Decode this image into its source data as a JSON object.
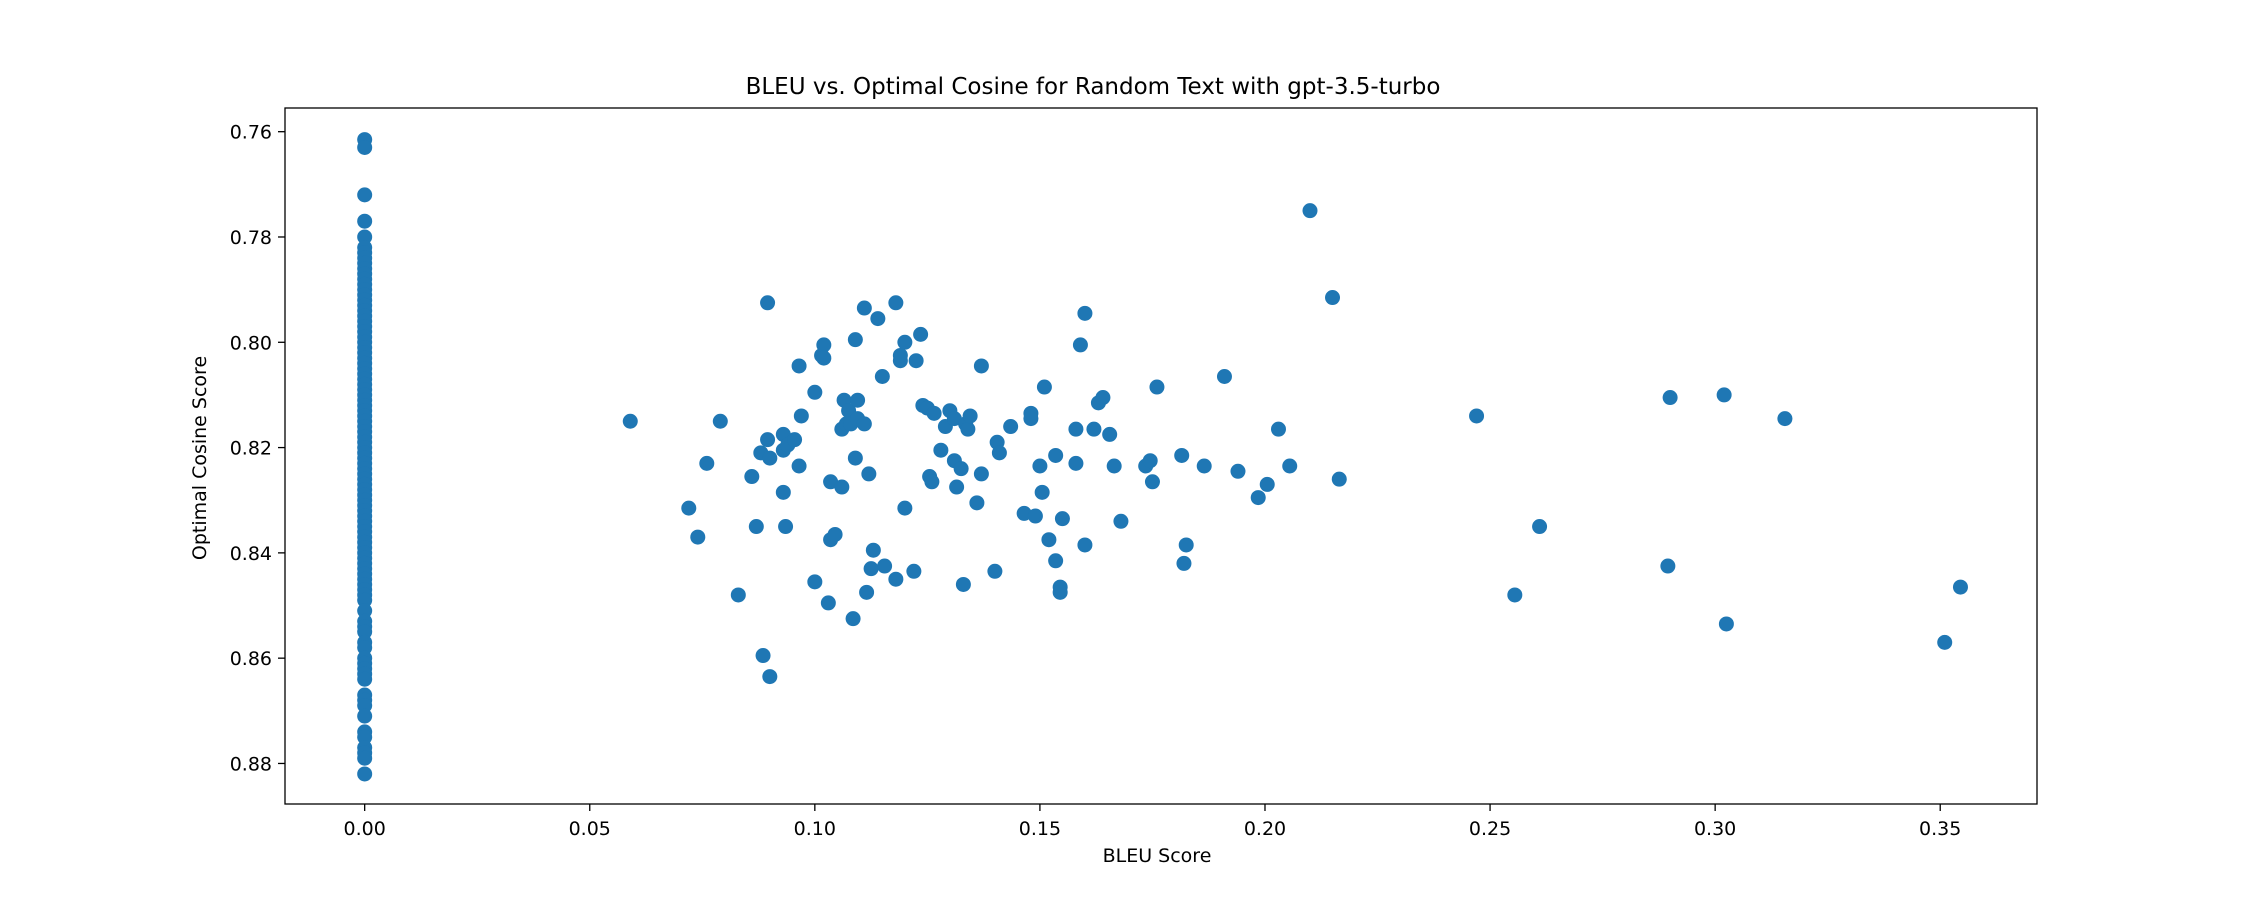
{
  "chart_data": {
    "type": "scatter",
    "title": "BLEU vs. Optimal Cosine for Random Text with gpt-3.5-turbo",
    "xlabel": "BLEU Score",
    "ylabel": "Optimal Cosine Score",
    "xlim": [
      -0.0177,
      0.3715
    ],
    "ylim": [
      0.7555,
      0.8877
    ],
    "y_inverted": true,
    "xticks": [
      0.0,
      0.05,
      0.1,
      0.15,
      0.2,
      0.25,
      0.3,
      0.35
    ],
    "xtick_labels": [
      "0.00",
      "0.05",
      "0.10",
      "0.15",
      "0.20",
      "0.25",
      "0.30",
      "0.35"
    ],
    "yticks": [
      0.76,
      0.78,
      0.8,
      0.82,
      0.84,
      0.86,
      0.88
    ],
    "ytick_labels": [
      "0.76",
      "0.78",
      "0.80",
      "0.82",
      "0.84",
      "0.86",
      "0.88"
    ],
    "grid": false,
    "legend": "none",
    "marker_color": "#1f77b4",
    "series": [
      {
        "points": [
          [
            0.0,
            0.7615
          ],
          [
            0.0,
            0.763
          ],
          [
            0.0,
            0.772
          ],
          [
            0.0,
            0.777
          ],
          [
            0.0,
            0.78
          ],
          [
            0.0,
            0.782
          ],
          [
            0.0,
            0.783
          ],
          [
            0.0,
            0.784
          ],
          [
            0.0,
            0.785
          ],
          [
            0.0,
            0.786
          ],
          [
            0.0,
            0.787
          ],
          [
            0.0,
            0.788
          ],
          [
            0.0,
            0.789
          ],
          [
            0.0,
            0.79
          ],
          [
            0.0,
            0.791
          ],
          [
            0.0,
            0.792
          ],
          [
            0.0,
            0.793
          ],
          [
            0.0,
            0.794
          ],
          [
            0.0,
            0.795
          ],
          [
            0.0,
            0.796
          ],
          [
            0.0,
            0.797
          ],
          [
            0.0,
            0.798
          ],
          [
            0.0,
            0.799
          ],
          [
            0.0,
            0.8
          ],
          [
            0.0,
            0.801
          ],
          [
            0.0,
            0.802
          ],
          [
            0.0,
            0.803
          ],
          [
            0.0,
            0.804
          ],
          [
            0.0,
            0.805
          ],
          [
            0.0,
            0.806
          ],
          [
            0.0,
            0.807
          ],
          [
            0.0,
            0.808
          ],
          [
            0.0,
            0.809
          ],
          [
            0.0,
            0.81
          ],
          [
            0.0,
            0.811
          ],
          [
            0.0,
            0.812
          ],
          [
            0.0,
            0.813
          ],
          [
            0.0,
            0.814
          ],
          [
            0.0,
            0.815
          ],
          [
            0.0,
            0.816
          ],
          [
            0.0,
            0.817
          ],
          [
            0.0,
            0.818
          ],
          [
            0.0,
            0.819
          ],
          [
            0.0,
            0.82
          ],
          [
            0.0,
            0.821
          ],
          [
            0.0,
            0.822
          ],
          [
            0.0,
            0.823
          ],
          [
            0.0,
            0.824
          ],
          [
            0.0,
            0.825
          ],
          [
            0.0,
            0.826
          ],
          [
            0.0,
            0.827
          ],
          [
            0.0,
            0.828
          ],
          [
            0.0,
            0.829
          ],
          [
            0.0,
            0.83
          ],
          [
            0.0,
            0.831
          ],
          [
            0.0,
            0.832
          ],
          [
            0.0,
            0.833
          ],
          [
            0.0,
            0.834
          ],
          [
            0.0,
            0.835
          ],
          [
            0.0,
            0.836
          ],
          [
            0.0,
            0.837
          ],
          [
            0.0,
            0.838
          ],
          [
            0.0,
            0.839
          ],
          [
            0.0,
            0.84
          ],
          [
            0.0,
            0.841
          ],
          [
            0.0,
            0.842
          ],
          [
            0.0,
            0.843
          ],
          [
            0.0,
            0.844
          ],
          [
            0.0,
            0.845
          ],
          [
            0.0,
            0.846
          ],
          [
            0.0,
            0.847
          ],
          [
            0.0,
            0.848
          ],
          [
            0.0,
            0.849
          ],
          [
            0.0,
            0.851
          ],
          [
            0.0,
            0.853
          ],
          [
            0.0,
            0.854
          ],
          [
            0.0,
            0.855
          ],
          [
            0.0,
            0.857
          ],
          [
            0.0,
            0.858
          ],
          [
            0.0,
            0.86
          ],
          [
            0.0,
            0.861
          ],
          [
            0.0,
            0.862
          ],
          [
            0.0,
            0.863
          ],
          [
            0.0,
            0.864
          ],
          [
            0.0,
            0.867
          ],
          [
            0.0,
            0.868
          ],
          [
            0.0,
            0.869
          ],
          [
            0.0,
            0.871
          ],
          [
            0.0,
            0.874
          ],
          [
            0.0,
            0.875
          ],
          [
            0.0,
            0.877
          ],
          [
            0.0,
            0.878
          ],
          [
            0.0,
            0.879
          ],
          [
            0.0,
            0.882
          ],
          [
            0.059,
            0.815
          ],
          [
            0.072,
            0.8315
          ],
          [
            0.074,
            0.837
          ],
          [
            0.076,
            0.823
          ],
          [
            0.079,
            0.815
          ],
          [
            0.083,
            0.848
          ],
          [
            0.086,
            0.8255
          ],
          [
            0.087,
            0.835
          ],
          [
            0.088,
            0.821
          ],
          [
            0.0885,
            0.8595
          ],
          [
            0.0895,
            0.7925
          ],
          [
            0.0895,
            0.8185
          ],
          [
            0.09,
            0.822
          ],
          [
            0.09,
            0.8635
          ],
          [
            0.093,
            0.8175
          ],
          [
            0.093,
            0.8205
          ],
          [
            0.093,
            0.8285
          ],
          [
            0.0935,
            0.835
          ],
          [
            0.094,
            0.8195
          ],
          [
            0.0955,
            0.8185
          ],
          [
            0.0965,
            0.8235
          ],
          [
            0.0965,
            0.8045
          ],
          [
            0.097,
            0.814
          ],
          [
            0.1,
            0.8095
          ],
          [
            0.1,
            0.8455
          ],
          [
            0.1015,
            0.8025
          ],
          [
            0.102,
            0.8005
          ],
          [
            0.102,
            0.803
          ],
          [
            0.103,
            0.8495
          ],
          [
            0.1035,
            0.8375
          ],
          [
            0.1035,
            0.8265
          ],
          [
            0.1045,
            0.8365
          ],
          [
            0.106,
            0.8165
          ],
          [
            0.106,
            0.8275
          ],
          [
            0.1065,
            0.811
          ],
          [
            0.107,
            0.8155
          ],
          [
            0.1075,
            0.813
          ],
          [
            0.108,
            0.8155
          ],
          [
            0.1085,
            0.8525
          ],
          [
            0.109,
            0.822
          ],
          [
            0.109,
            0.7995
          ],
          [
            0.1095,
            0.8145
          ],
          [
            0.1095,
            0.811
          ],
          [
            0.111,
            0.7935
          ],
          [
            0.111,
            0.8155
          ],
          [
            0.1115,
            0.8475
          ],
          [
            0.112,
            0.825
          ],
          [
            0.1125,
            0.843
          ],
          [
            0.113,
            0.8395
          ],
          [
            0.114,
            0.7955
          ],
          [
            0.115,
            0.8065
          ],
          [
            0.1155,
            0.8425
          ],
          [
            0.118,
            0.7925
          ],
          [
            0.118,
            0.845
          ],
          [
            0.119,
            0.8035
          ],
          [
            0.119,
            0.8025
          ],
          [
            0.12,
            0.8
          ],
          [
            0.12,
            0.8315
          ],
          [
            0.122,
            0.8435
          ],
          [
            0.1225,
            0.8035
          ],
          [
            0.1235,
            0.7985
          ],
          [
            0.124,
            0.812
          ],
          [
            0.125,
            0.8125
          ],
          [
            0.1255,
            0.8255
          ],
          [
            0.126,
            0.8265
          ],
          [
            0.1265,
            0.8135
          ],
          [
            0.128,
            0.8205
          ],
          [
            0.129,
            0.816
          ],
          [
            0.13,
            0.813
          ],
          [
            0.131,
            0.8145
          ],
          [
            0.131,
            0.8225
          ],
          [
            0.1315,
            0.8275
          ],
          [
            0.1325,
            0.824
          ],
          [
            0.133,
            0.846
          ],
          [
            0.1335,
            0.8155
          ],
          [
            0.134,
            0.8165
          ],
          [
            0.1345,
            0.814
          ],
          [
            0.136,
            0.8305
          ],
          [
            0.137,
            0.825
          ],
          [
            0.137,
            0.8045
          ],
          [
            0.14,
            0.8435
          ],
          [
            0.1405,
            0.819
          ],
          [
            0.141,
            0.821
          ],
          [
            0.1435,
            0.816
          ],
          [
            0.1465,
            0.8325
          ],
          [
            0.148,
            0.8135
          ],
          [
            0.148,
            0.8145
          ],
          [
            0.149,
            0.833
          ],
          [
            0.15,
            0.8235
          ],
          [
            0.1505,
            0.8285
          ],
          [
            0.151,
            0.8085
          ],
          [
            0.152,
            0.8375
          ],
          [
            0.1535,
            0.8215
          ],
          [
            0.1535,
            0.8415
          ],
          [
            0.1545,
            0.8465
          ],
          [
            0.1545,
            0.8475
          ],
          [
            0.155,
            0.8335
          ],
          [
            0.158,
            0.8165
          ],
          [
            0.158,
            0.823
          ],
          [
            0.159,
            0.8005
          ],
          [
            0.16,
            0.7945
          ],
          [
            0.16,
            0.8385
          ],
          [
            0.162,
            0.8165
          ],
          [
            0.163,
            0.8115
          ],
          [
            0.164,
            0.8105
          ],
          [
            0.1655,
            0.8175
          ],
          [
            0.1665,
            0.8235
          ],
          [
            0.168,
            0.834
          ],
          [
            0.1735,
            0.8235
          ],
          [
            0.1745,
            0.8225
          ],
          [
            0.175,
            0.8265
          ],
          [
            0.176,
            0.8085
          ],
          [
            0.1815,
            0.8215
          ],
          [
            0.182,
            0.842
          ],
          [
            0.1825,
            0.8385
          ],
          [
            0.1865,
            0.8235
          ],
          [
            0.191,
            0.8065
          ],
          [
            0.194,
            0.8245
          ],
          [
            0.1985,
            0.8295
          ],
          [
            0.2005,
            0.827
          ],
          [
            0.203,
            0.8165
          ],
          [
            0.2055,
            0.8235
          ],
          [
            0.21,
            0.775
          ],
          [
            0.215,
            0.7915
          ],
          [
            0.2165,
            0.826
          ],
          [
            0.247,
            0.814
          ],
          [
            0.2555,
            0.848
          ],
          [
            0.261,
            0.835
          ],
          [
            0.2895,
            0.8425
          ],
          [
            0.29,
            0.8105
          ],
          [
            0.302,
            0.81
          ],
          [
            0.3025,
            0.8535
          ],
          [
            0.3155,
            0.8145
          ],
          [
            0.351,
            0.857
          ],
          [
            0.3545,
            0.8465
          ]
        ]
      }
    ]
  }
}
